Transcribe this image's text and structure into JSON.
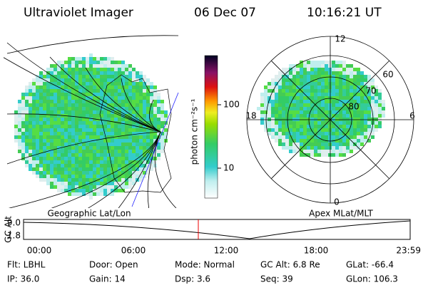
{
  "header": {
    "title": "Ultraviolet Imager",
    "date": "06 Dec 07",
    "time": "10:16:21 UT"
  },
  "colorbar": {
    "label": "photon cm⁻²s⁻¹",
    "ticks": [
      "100",
      "10"
    ]
  },
  "geographic_panel": {
    "caption": "Geographic Lat/Lon"
  },
  "polar_panel": {
    "caption": "Apex MLat/MLT",
    "mlt_labels": [
      "12",
      "18",
      "6",
      "0"
    ],
    "mlat_labels": [
      "60",
      "70",
      "80"
    ]
  },
  "altitude_plot": {
    "label": "GC Alt",
    "y_labels": [
      "9.0",
      "1.8"
    ],
    "time_labels": [
      "00:00",
      "06:00",
      "12:00",
      "18:00",
      "23:59"
    ]
  },
  "status": {
    "rows": [
      [
        "Flt: LBHL",
        "Door: Open",
        "Mode: Normal",
        "GC Alt: 6.8 Re",
        "GLat: -66.4"
      ],
      [
        "IP: 36.0",
        "Gain: 14",
        "Dsp: 3.6",
        "Seq: 39",
        "GLon: 106.3"
      ]
    ]
  }
}
